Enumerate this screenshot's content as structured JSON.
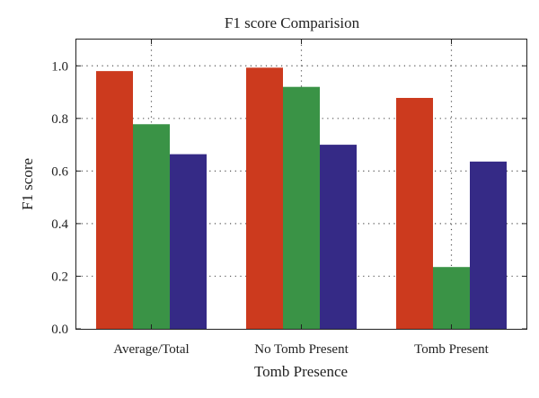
{
  "chart_data": {
    "type": "bar",
    "title": "F1 score Comparision",
    "xlabel": "Tomb Presence",
    "ylabel": "F1 score",
    "categories": [
      "Average/Total",
      "No Tomb Present",
      "Tomb Present"
    ],
    "series": [
      {
        "values": [
          0.98,
          0.993,
          0.878
        ],
        "color": "#cc3a1e"
      },
      {
        "values": [
          0.778,
          0.92,
          0.235
        ],
        "color": "#3a9346"
      },
      {
        "values": [
          0.664,
          0.7,
          0.636
        ],
        "color": "#352a86"
      }
    ],
    "ylim": [
      0,
      1.1
    ],
    "yticks": [
      "0.0",
      "0.2",
      "0.4",
      "0.6",
      "0.8",
      "1.0"
    ],
    "ytick_values": [
      0,
      0.2,
      0.4,
      0.6,
      0.8,
      1.0
    ],
    "grid": true,
    "legend": "none"
  }
}
